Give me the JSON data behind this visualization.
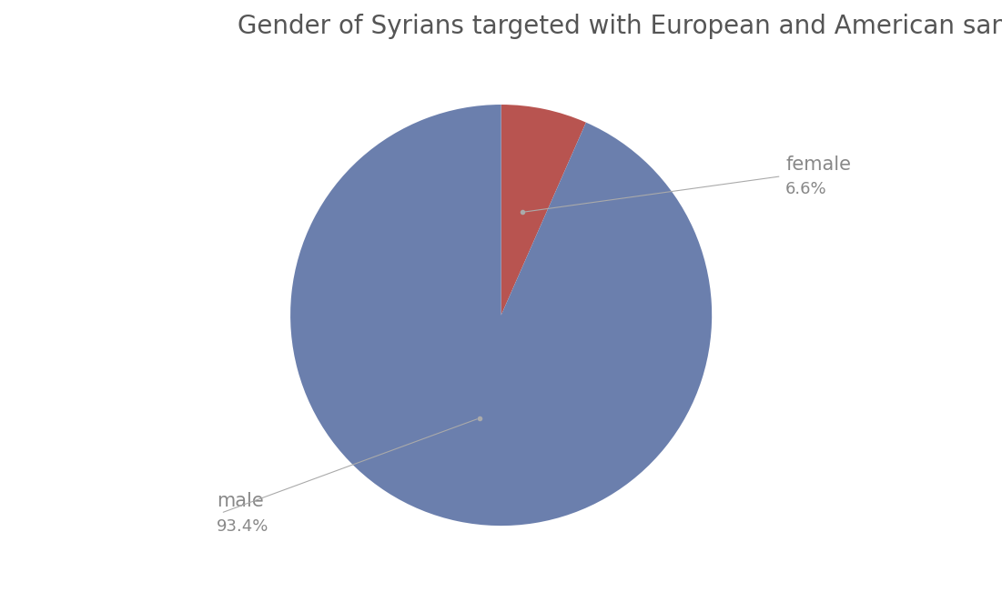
{
  "title": "Gender of Syrians targeted with European and American sanctions",
  "slices": [
    "female",
    "male"
  ],
  "values": [
    6.6,
    93.4
  ],
  "colors": [
    "#b85450",
    "#6b7fad"
  ],
  "labels": [
    "female",
    "male"
  ],
  "label_values": [
    "6.6%",
    "93.4%"
  ],
  "background_color": "#ffffff",
  "title_color": "#555555",
  "title_fontsize": 20,
  "label_fontsize": 15,
  "pct_fontsize": 13
}
